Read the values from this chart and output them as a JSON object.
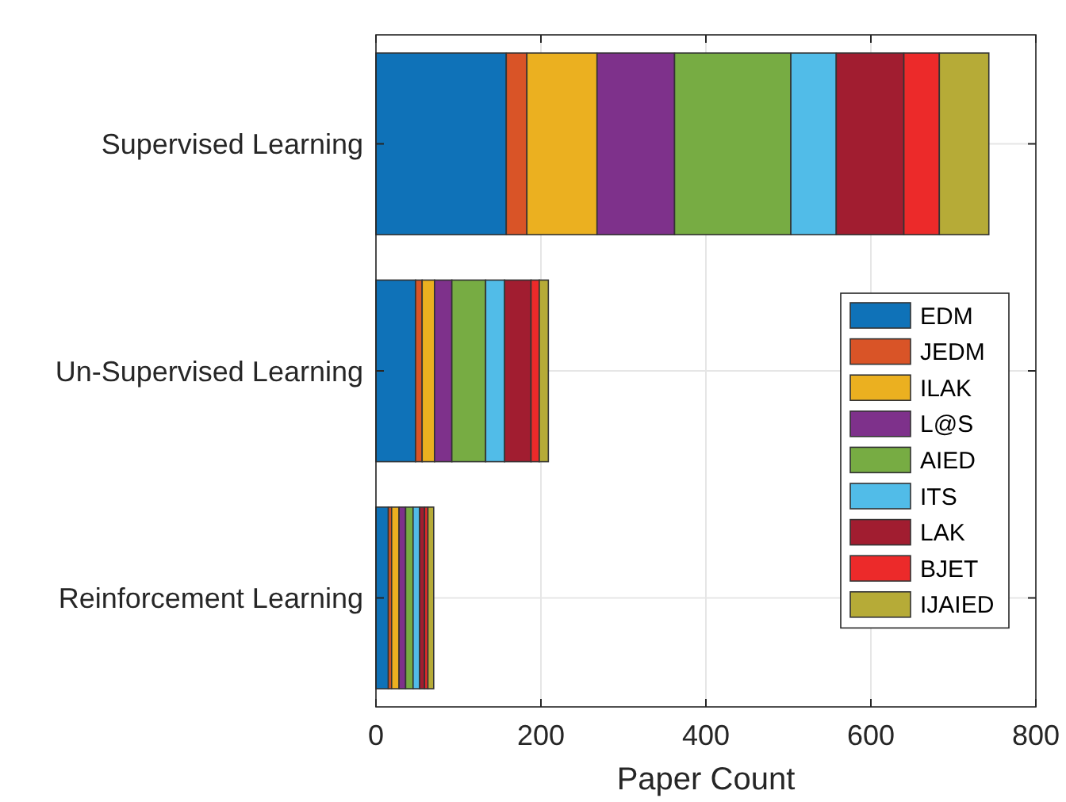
{
  "chart_data": {
    "type": "bar",
    "orientation": "horizontal",
    "stacked": true,
    "xlabel": "Paper Count",
    "categories": [
      "Supervised Learning",
      "Un-Supervised Learning",
      "Reinforcement Learning"
    ],
    "series": [
      {
        "name": "EDM",
        "color": "#0f72b8",
        "values": [
          158,
          48,
          15
        ]
      },
      {
        "name": "JEDM",
        "color": "#d95427",
        "values": [
          25,
          8,
          4
        ]
      },
      {
        "name": "ILAK",
        "color": "#ebb020",
        "values": [
          85,
          15,
          9
        ]
      },
      {
        "name": "L@S",
        "color": "#7e318b",
        "values": [
          94,
          21,
          8
        ]
      },
      {
        "name": "AIED",
        "color": "#77ac43",
        "values": [
          141,
          41,
          9
        ]
      },
      {
        "name": "ITS",
        "color": "#51bce8",
        "values": [
          55,
          23,
          8
        ]
      },
      {
        "name": "LAK",
        "color": "#a11d30",
        "values": [
          82,
          32,
          6
        ]
      },
      {
        "name": "BJET",
        "color": "#ec2a2a",
        "values": [
          43,
          10,
          4
        ]
      },
      {
        "name": "IJAIED",
        "color": "#b6ab37",
        "values": [
          60,
          11,
          7
        ]
      }
    ],
    "xlim": [
      0,
      800
    ],
    "xticks": [
      0,
      200,
      400,
      600,
      800
    ],
    "grid": true,
    "legend": "right"
  }
}
